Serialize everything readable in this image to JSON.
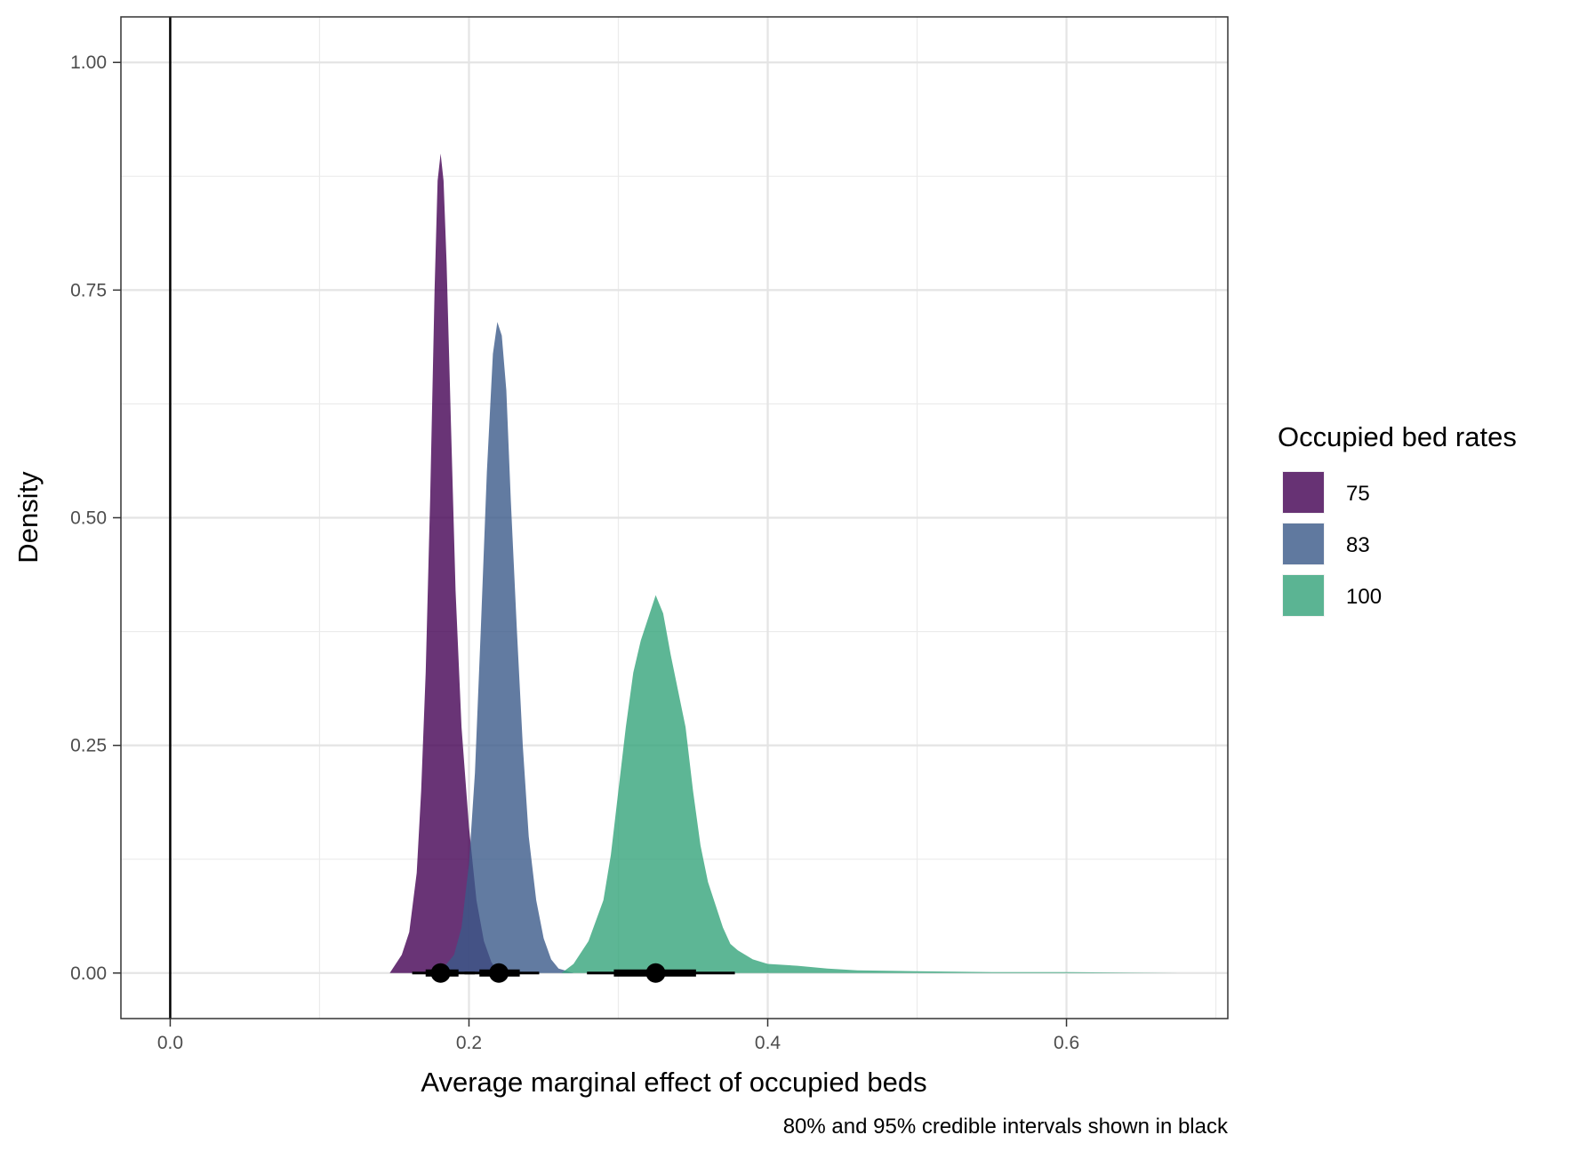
{
  "chart_data": {
    "type": "area",
    "subtype": "density",
    "xlabel": "Average marginal effect of occupied beds",
    "ylabel": "Density",
    "caption": "80% and 95% credible intervals shown in black",
    "xlim": [
      -0.033,
      0.708
    ],
    "ylim": [
      -0.05,
      1.05
    ],
    "x_ticks": [
      {
        "value": 0.0,
        "label": "0.0"
      },
      {
        "value": 0.2,
        "label": "0.2"
      },
      {
        "value": 0.4,
        "label": "0.4"
      },
      {
        "value": 0.6,
        "label": "0.6"
      }
    ],
    "y_ticks": [
      {
        "value": 0.0,
        "label": "0.00"
      },
      {
        "value": 0.25,
        "label": "0.25"
      },
      {
        "value": 0.5,
        "label": "0.50"
      },
      {
        "value": 0.75,
        "label": "0.75"
      },
      {
        "value": 1.0,
        "label": "1.00"
      }
    ],
    "x_minor_ticks": [
      0.1,
      0.3,
      0.5,
      0.7
    ],
    "y_minor_ticks": [
      0.125,
      0.375,
      0.625,
      0.875
    ],
    "vline_x": 0,
    "grid": true,
    "legend": {
      "title": "Occupied bed rates",
      "position": "right"
    },
    "series": [
      {
        "name": "75",
        "color": "#440154",
        "opacity": 0.8,
        "density": [
          [
            0.147,
            0.0
          ],
          [
            0.155,
            0.02
          ],
          [
            0.16,
            0.045
          ],
          [
            0.165,
            0.11
          ],
          [
            0.168,
            0.2
          ],
          [
            0.171,
            0.33
          ],
          [
            0.174,
            0.52
          ],
          [
            0.177,
            0.75
          ],
          [
            0.179,
            0.87
          ],
          [
            0.181,
            0.9
          ],
          [
            0.183,
            0.87
          ],
          [
            0.185,
            0.78
          ],
          [
            0.188,
            0.6
          ],
          [
            0.191,
            0.42
          ],
          [
            0.195,
            0.27
          ],
          [
            0.2,
            0.16
          ],
          [
            0.205,
            0.08
          ],
          [
            0.21,
            0.035
          ],
          [
            0.215,
            0.012
          ],
          [
            0.22,
            0.0
          ]
        ],
        "interval": {
          "point": 0.181,
          "inner": [
            0.171,
            0.193
          ],
          "outer": [
            0.162,
            0.204
          ]
        }
      },
      {
        "name": "83",
        "color": "#3b5a89",
        "opacity": 0.8,
        "density": [
          [
            0.18,
            0.0
          ],
          [
            0.19,
            0.02
          ],
          [
            0.195,
            0.05
          ],
          [
            0.2,
            0.12
          ],
          [
            0.204,
            0.22
          ],
          [
            0.208,
            0.38
          ],
          [
            0.212,
            0.55
          ],
          [
            0.216,
            0.68
          ],
          [
            0.219,
            0.715
          ],
          [
            0.222,
            0.7
          ],
          [
            0.225,
            0.64
          ],
          [
            0.228,
            0.52
          ],
          [
            0.232,
            0.38
          ],
          [
            0.236,
            0.25
          ],
          [
            0.24,
            0.15
          ],
          [
            0.245,
            0.08
          ],
          [
            0.25,
            0.038
          ],
          [
            0.255,
            0.015
          ],
          [
            0.26,
            0.005
          ],
          [
            0.27,
            0.0
          ]
        ],
        "interval": {
          "point": 0.22,
          "inner": [
            0.207,
            0.234
          ],
          "outer": [
            0.197,
            0.247
          ]
        }
      },
      {
        "name": "100",
        "color": "#35a47a",
        "opacity": 0.8,
        "density": [
          [
            0.262,
            0.0
          ],
          [
            0.27,
            0.01
          ],
          [
            0.28,
            0.035
          ],
          [
            0.29,
            0.08
          ],
          [
            0.295,
            0.13
          ],
          [
            0.3,
            0.2
          ],
          [
            0.305,
            0.27
          ],
          [
            0.31,
            0.33
          ],
          [
            0.315,
            0.365
          ],
          [
            0.32,
            0.39
          ],
          [
            0.325,
            0.415
          ],
          [
            0.33,
            0.395
          ],
          [
            0.335,
            0.35
          ],
          [
            0.34,
            0.31
          ],
          [
            0.345,
            0.27
          ],
          [
            0.35,
            0.2
          ],
          [
            0.355,
            0.14
          ],
          [
            0.36,
            0.1
          ],
          [
            0.365,
            0.075
          ],
          [
            0.37,
            0.05
          ],
          [
            0.375,
            0.032
          ],
          [
            0.38,
            0.025
          ],
          [
            0.39,
            0.015
          ],
          [
            0.4,
            0.01
          ],
          [
            0.42,
            0.008
          ],
          [
            0.44,
            0.005
          ],
          [
            0.46,
            0.003
          ],
          [
            0.5,
            0.002
          ],
          [
            0.55,
            0.001
          ],
          [
            0.6,
            0.001
          ],
          [
            0.675,
            0.0
          ]
        ],
        "interval": {
          "point": 0.325,
          "inner": [
            0.297,
            0.352
          ],
          "outer": [
            0.279,
            0.378
          ]
        }
      }
    ]
  }
}
